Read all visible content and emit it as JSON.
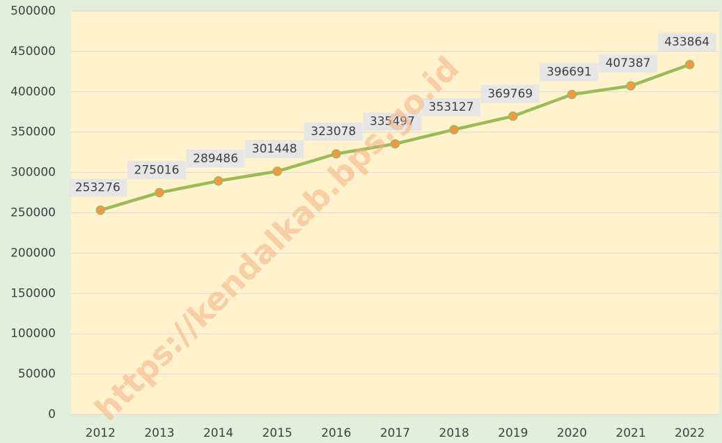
{
  "chart_data": {
    "type": "line",
    "categories": [
      "2012",
      "2013",
      "2014",
      "2015",
      "2016",
      "2017",
      "2018",
      "2019",
      "2020",
      "2021",
      "2022"
    ],
    "series": [
      {
        "color": "#9bbb59",
        "marker_color": "#f79646",
        "values": [
          253276,
          275016,
          289486,
          301448,
          323078,
          335497,
          353127,
          369769,
          396691,
          407387,
          433864
        ]
      }
    ],
    "ylim": [
      0,
      500000
    ],
    "yticks": [
      0,
      50000,
      100000,
      150000,
      200000,
      250000,
      300000,
      350000,
      400000,
      450000,
      500000
    ],
    "grid": true,
    "data_labels": true,
    "watermark": "https://kendalkab.bps.go.id"
  }
}
